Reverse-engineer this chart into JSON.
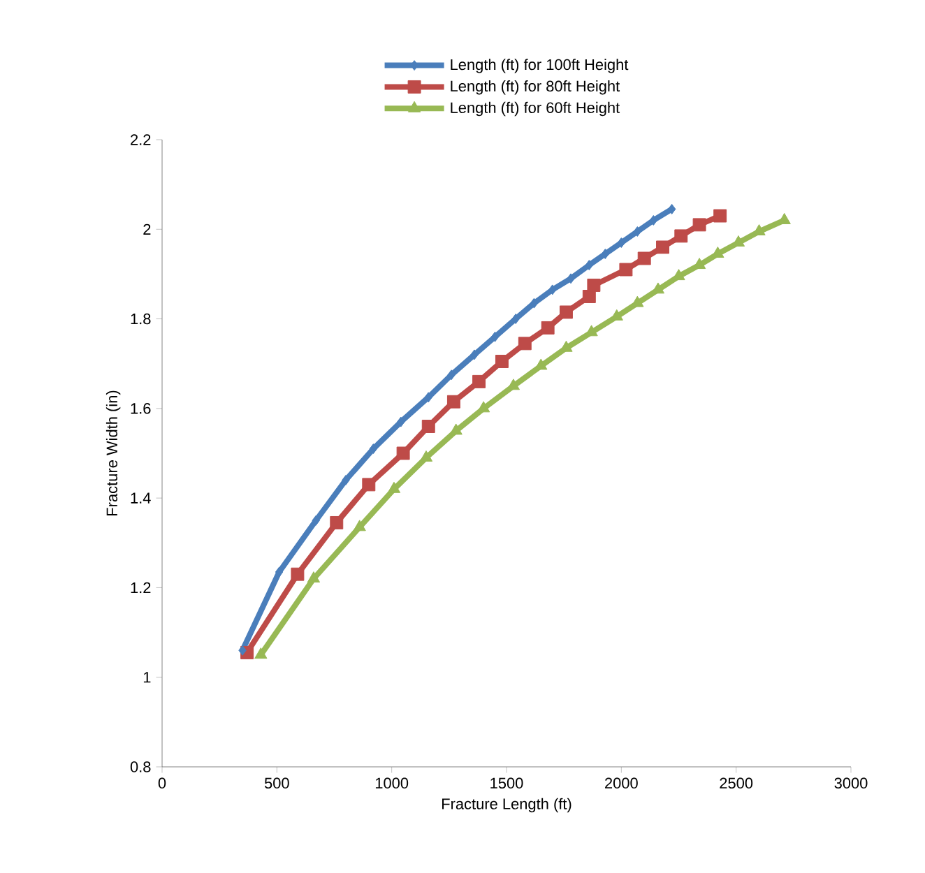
{
  "chart_data": {
    "type": "line",
    "xlabel": "Fracture Length (ft)",
    "ylabel": "Fracture Width (in)",
    "xlim": [
      0,
      3000
    ],
    "xticks": [
      0,
      500,
      1000,
      1500,
      2000,
      2500,
      3000
    ],
    "ylim": [
      0.8,
      2.2
    ],
    "yticks": [
      0.8,
      1,
      1.2,
      1.4,
      1.6,
      1.8,
      2,
      2.2
    ],
    "grid": false,
    "legend": "top",
    "line_style": "solid",
    "series": [
      {
        "name": "Length (ft) for 100ft Height",
        "color": "#4a7ebb",
        "marker": "diamond",
        "x": [
          350,
          510,
          670,
          800,
          920,
          1040,
          1160,
          1260,
          1360,
          1450,
          1540,
          1620,
          1700,
          1780,
          1860,
          1930,
          2000,
          2070,
          2140,
          2220
        ],
        "values": [
          1.06,
          1.235,
          1.35,
          1.44,
          1.51,
          1.57,
          1.625,
          1.675,
          1.72,
          1.76,
          1.8,
          1.835,
          1.865,
          1.89,
          1.92,
          1.945,
          1.97,
          1.995,
          2.02,
          2.045
        ]
      },
      {
        "name": "Length (ft) for 80ft Height",
        "color": "#be4b48",
        "marker": "square",
        "x": [
          370,
          590,
          760,
          900,
          1050,
          1160,
          1270,
          1380,
          1480,
          1580,
          1680,
          1760,
          1860,
          1880,
          2020,
          2100,
          2180,
          2260,
          2340,
          2430
        ],
        "values": [
          1.055,
          1.23,
          1.345,
          1.43,
          1.5,
          1.56,
          1.615,
          1.66,
          1.705,
          1.745,
          1.78,
          1.815,
          1.85,
          1.875,
          1.91,
          1.935,
          1.96,
          1.985,
          2.01,
          2.03
        ]
      },
      {
        "name": "Length (ft) for 60ft Height",
        "color": "#98b954",
        "marker": "triangle",
        "x": [
          430,
          660,
          860,
          1010,
          1150,
          1280,
          1400,
          1530,
          1650,
          1760,
          1870,
          1980,
          2070,
          2160,
          2250,
          2340,
          2420,
          2510,
          2600,
          2710
        ],
        "values": [
          1.05,
          1.22,
          1.335,
          1.42,
          1.49,
          1.55,
          1.6,
          1.65,
          1.695,
          1.735,
          1.77,
          1.805,
          1.835,
          1.865,
          1.895,
          1.92,
          1.945,
          1.97,
          1.995,
          2.02
        ]
      }
    ]
  }
}
